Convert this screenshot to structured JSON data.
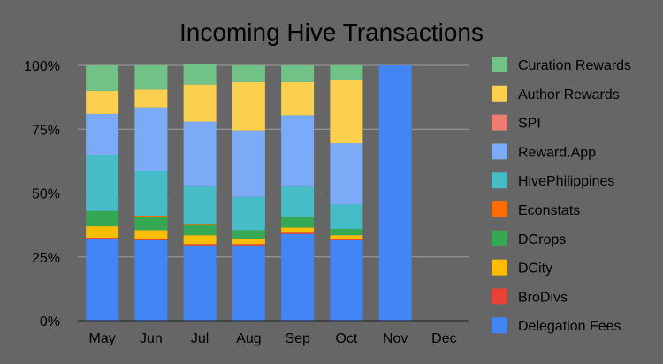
{
  "chart_data": {
    "type": "bar",
    "stacked": true,
    "percent_stacked": true,
    "title": "Incoming Hive Transactions",
    "xlabel": "",
    "ylabel": "",
    "ylim": [
      0,
      100
    ],
    "y_ticks": [
      0,
      25,
      50,
      75,
      100
    ],
    "y_tick_labels": [
      "0%",
      "25%",
      "50%",
      "75%",
      "100%"
    ],
    "grid": true,
    "legend_position": "right",
    "categories": [
      "May",
      "Jun",
      "Jul",
      "Aug",
      "Sep",
      "Oct",
      "Nov",
      "Dec"
    ],
    "series": [
      {
        "name": "Delegation Fees",
        "color": "#4285F4",
        "values": [
          32,
          31.5,
          29.5,
          29.5,
          34,
          31.5,
          100,
          0
        ]
      },
      {
        "name": "BroDivs",
        "color": "#EA4335",
        "values": [
          0.5,
          0.5,
          0.5,
          0.5,
          0.5,
          0.5,
          0,
          0
        ]
      },
      {
        "name": "DCity",
        "color": "#FBBC04",
        "values": [
          4.5,
          3.5,
          3.5,
          2,
          2,
          1.5,
          0,
          0
        ]
      },
      {
        "name": "DCrops",
        "color": "#34A853",
        "values": [
          6,
          5,
          4,
          3.5,
          4,
          2.5,
          0,
          0
        ]
      },
      {
        "name": "Econstats",
        "color": "#FF6D01",
        "values": [
          0,
          0.5,
          0.5,
          0,
          0,
          0,
          0,
          0
        ]
      },
      {
        "name": "HivePhilippines",
        "color": "#46BDC6",
        "values": [
          22,
          17.5,
          14.5,
          13,
          12,
          9.5,
          0,
          0
        ]
      },
      {
        "name": "Reward.App",
        "color": "#7BAAF7",
        "values": [
          16,
          25,
          25.5,
          26,
          28,
          24,
          0,
          0
        ]
      },
      {
        "name": "SPI",
        "color": "#F07B72",
        "values": [
          0,
          0,
          0,
          0,
          0,
          0,
          0,
          0
        ]
      },
      {
        "name": "Author Rewards",
        "color": "#FCD04F",
        "values": [
          9,
          7,
          14.5,
          19,
          13,
          25,
          0,
          0
        ]
      },
      {
        "name": "Curation Rewards",
        "color": "#71C287",
        "values": [
          10,
          9.5,
          8,
          6.5,
          6.5,
          5.5,
          0,
          0
        ]
      }
    ],
    "legend_order": [
      "Curation Rewards",
      "Author Rewards",
      "SPI",
      "Reward.App",
      "HivePhilippines",
      "Econstats",
      "DCrops",
      "DCity",
      "BroDivs",
      "Delegation Fees"
    ]
  },
  "colors": {
    "background": "#666666",
    "text": "#000000",
    "gridline": "#A0A0A0",
    "axis": "#222222"
  }
}
